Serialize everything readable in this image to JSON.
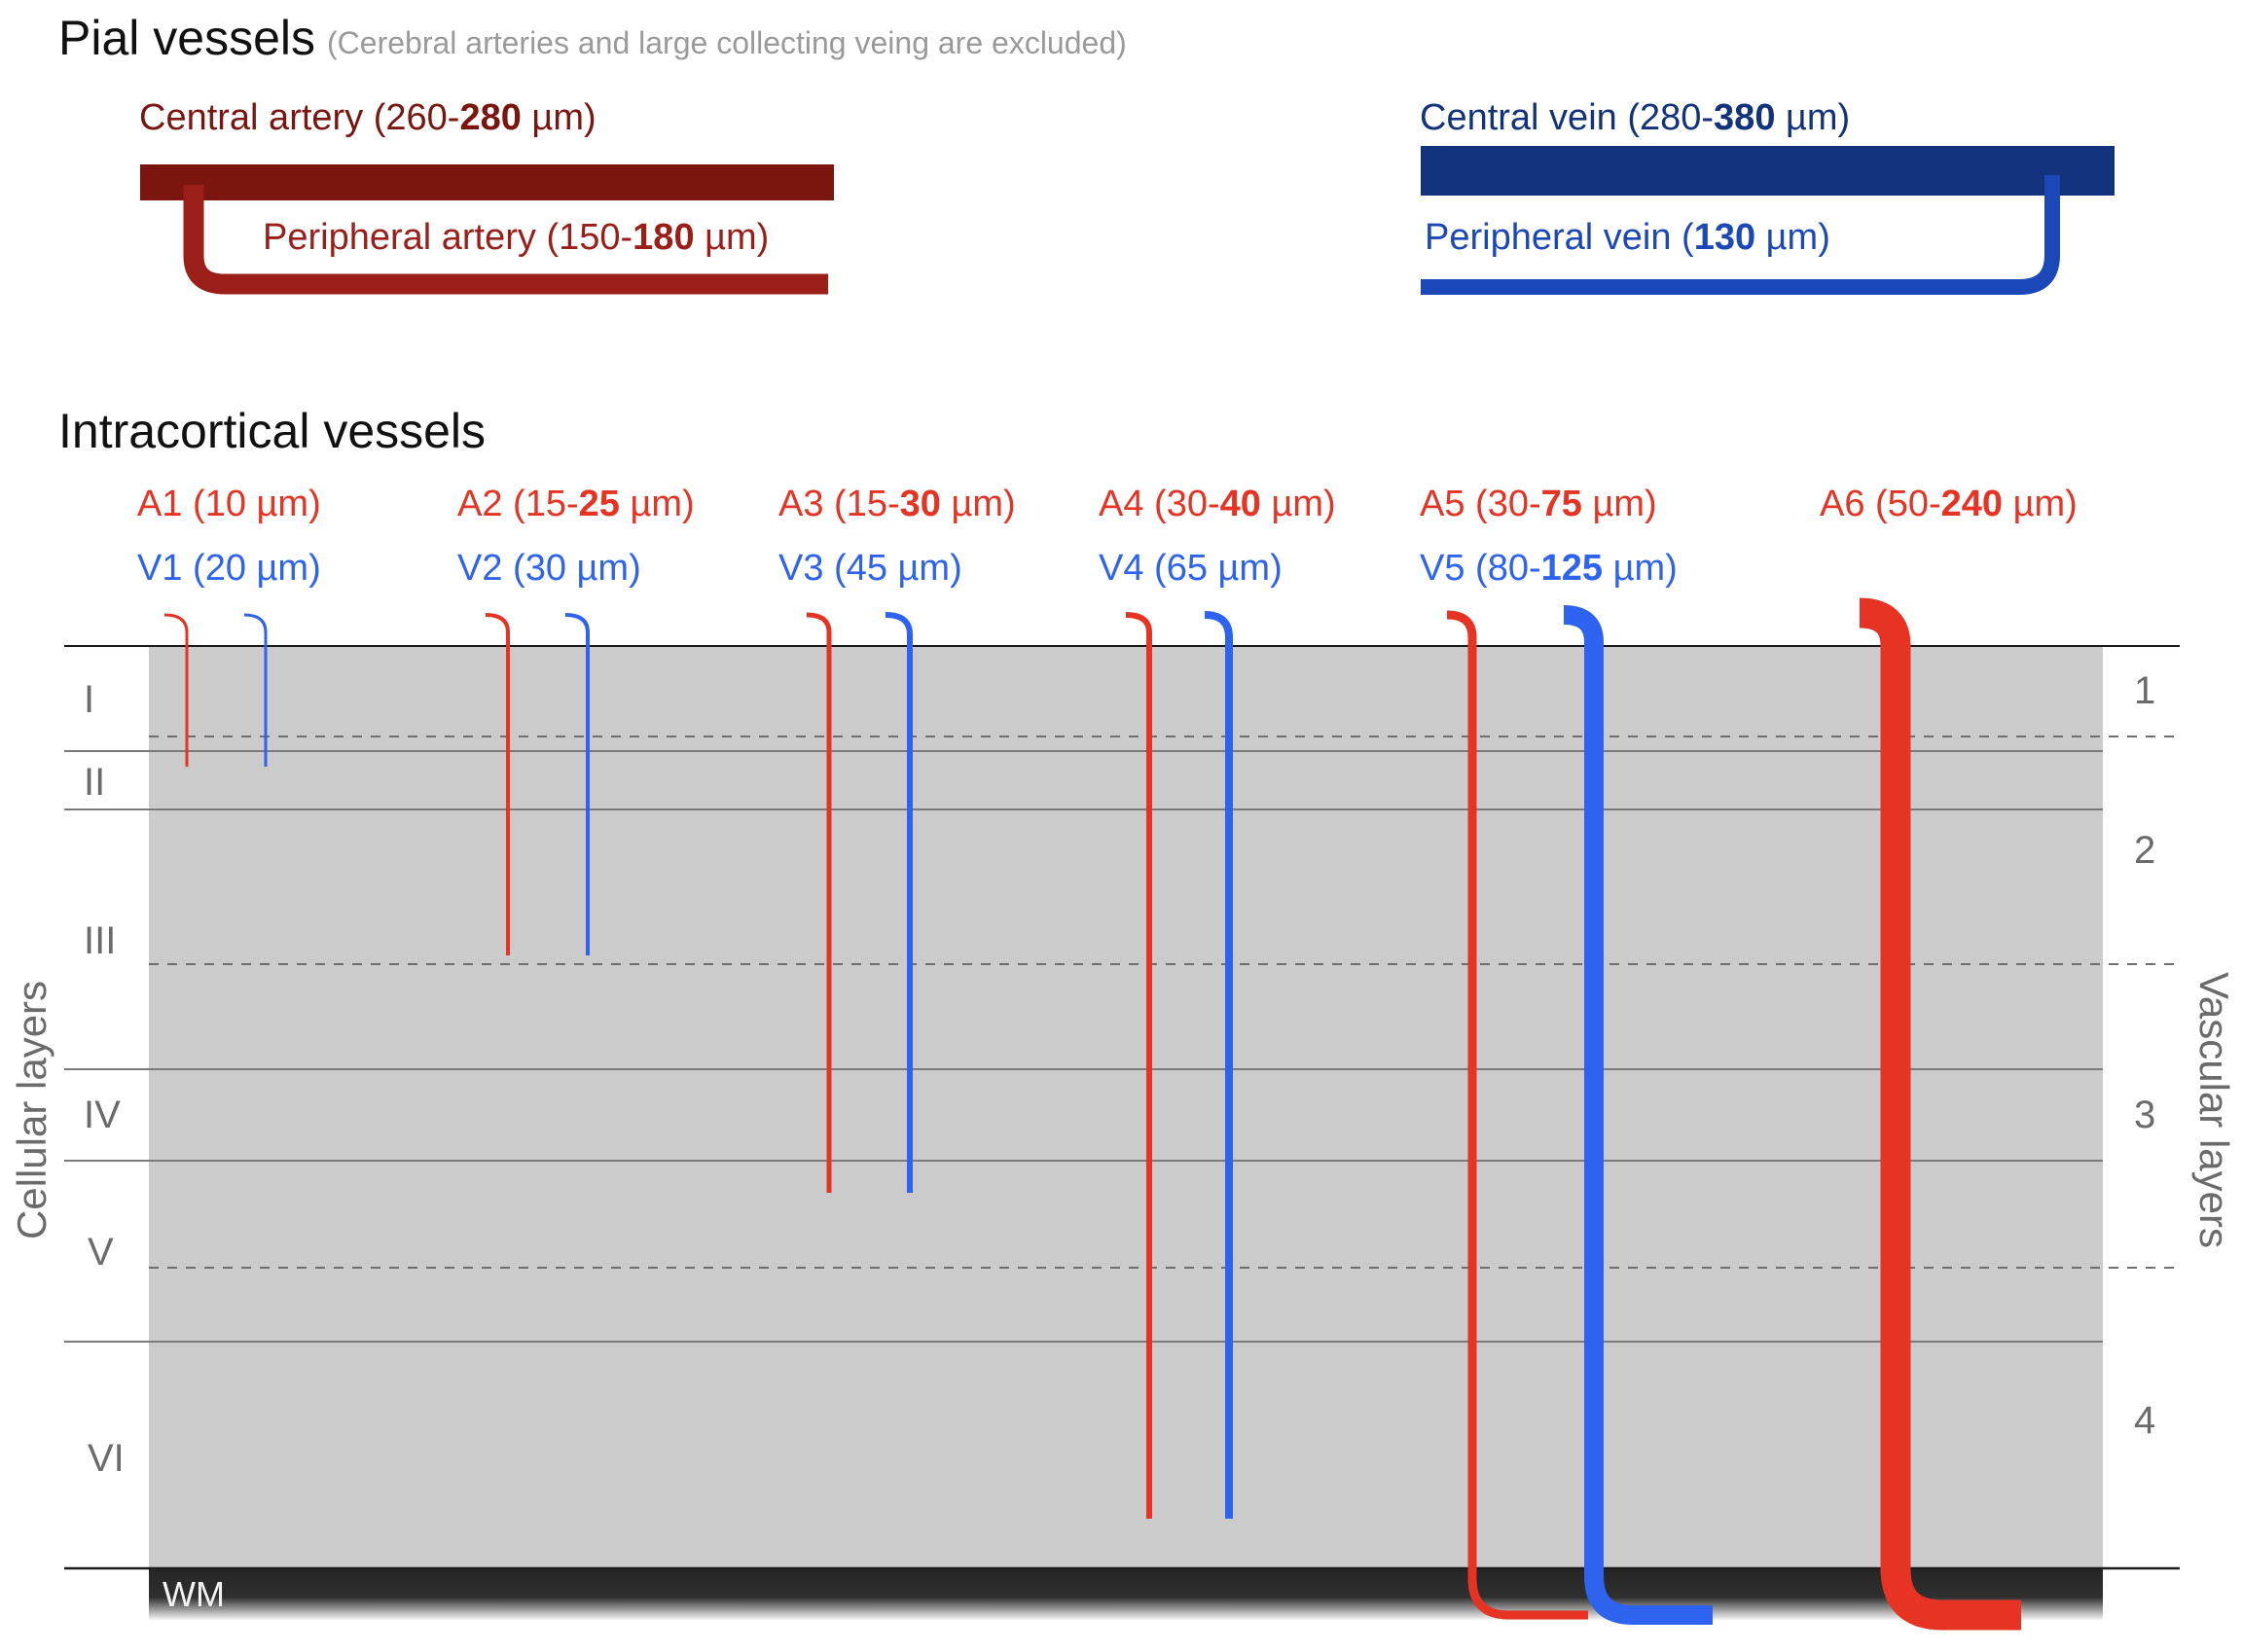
{
  "titles": {
    "pial": "Pial vessels",
    "pial_note": "(Cerebral arteries and large collecting veing are excluded)",
    "intracortical": "Intracortical vessels"
  },
  "colors": {
    "artery_pial_central": "#7a1510",
    "artery_pial_peripheral": "#9b1f18",
    "vein_pial_central": "#13327c",
    "vein_pial_peripheral": "#1b47b8",
    "artery_intracortical": "#e63323",
    "vein_intracortical": "#2e63f0",
    "cortex_fill": "#cbcbcb",
    "white_matter": "#2a2a2a"
  },
  "pial": {
    "central_artery": {
      "pre": "Central artery (260-",
      "bold": "280",
      "post": " µm)"
    },
    "peripheral_artery": {
      "pre": "Peripheral artery (150-",
      "bold": "180",
      "post": " µm)"
    },
    "central_vein": {
      "pre": "Central vein (280-",
      "bold": "380",
      "post": " µm)"
    },
    "peripheral_vein": {
      "pre": "Peripheral vein (",
      "bold": "130",
      "post": " µm)"
    }
  },
  "vessel_labels": {
    "arteries": [
      {
        "pre": "A1 (10 µm)",
        "bold": "",
        "post": ""
      },
      {
        "pre": "A2 (15-",
        "bold": "25",
        "post": " µm)"
      },
      {
        "pre": "A3 (15-",
        "bold": "30",
        "post": " µm)"
      },
      {
        "pre": "A4 (30-",
        "bold": "40",
        "post": " µm)"
      },
      {
        "pre": "A5 (30-",
        "bold": "75",
        "post": " µm)"
      },
      {
        "pre": "A6 (50-",
        "bold": "240",
        "post": " µm)"
      }
    ],
    "veins": [
      {
        "pre": "V1 (20 µm)",
        "bold": "",
        "post": ""
      },
      {
        "pre": "V2 (30 µm)",
        "bold": "",
        "post": ""
      },
      {
        "pre": "V3 (45 µm)",
        "bold": "",
        "post": ""
      },
      {
        "pre": "V4 (65 µm)",
        "bold": "",
        "post": ""
      },
      {
        "pre": "V5 (80-",
        "bold": "125",
        "post": " µm)"
      }
    ]
  },
  "cellular_layers": {
    "axis_title": "Cellular layers",
    "labels": [
      "I",
      "II",
      "III",
      "IV",
      "V",
      "VI"
    ]
  },
  "vascular_layers": {
    "axis_title": "Vascular layers",
    "labels": [
      "1",
      "2",
      "3",
      "4"
    ]
  },
  "white_matter_label": "WM"
}
